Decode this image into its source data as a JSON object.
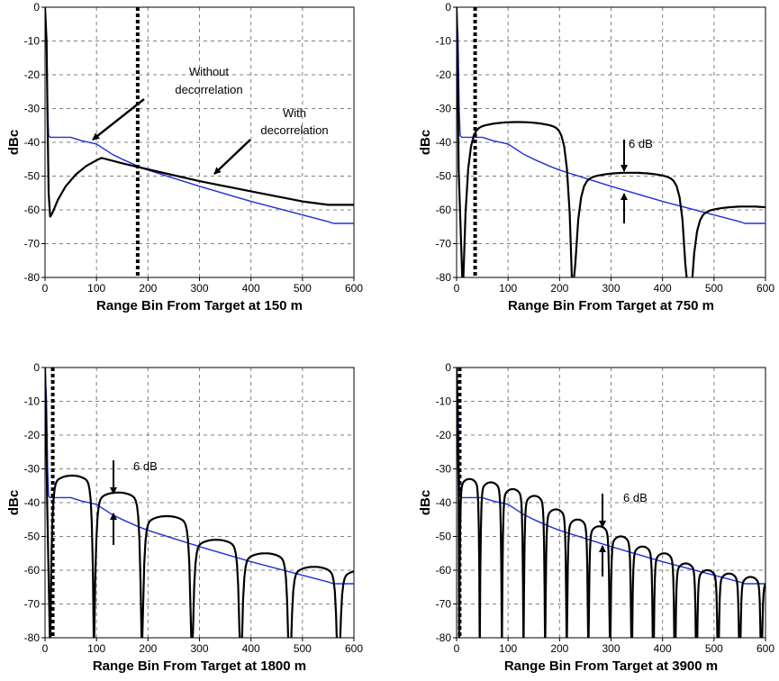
{
  "colors": {
    "with_decorrelation": "#000000",
    "without_decorrelation": "#1f2fd8",
    "grid": "#808080",
    "marker": "#000000"
  },
  "chart_data": [
    {
      "type": "line",
      "xlabel": "Range Bin From Target at 150 m",
      "ylabel": "dBc",
      "xlim": [
        0,
        600
      ],
      "ylim": [
        -80,
        0
      ],
      "xticks": [
        0,
        100,
        200,
        300,
        400,
        500,
        600
      ],
      "yticks": [
        0,
        -10,
        -20,
        -30,
        -40,
        -50,
        -60,
        -70,
        -80
      ],
      "grid": true,
      "marker_x": 180,
      "series": [
        {
          "name": "Without decorrelation",
          "color": "without_decorrelation",
          "kind": "polyline",
          "points": [
            [
              0,
              0
            ],
            [
              3,
              -10
            ],
            [
              5,
              -30
            ],
            [
              7,
              -38
            ],
            [
              10,
              -38.5
            ],
            [
              50,
              -38.5
            ],
            [
              70,
              -39.5
            ],
            [
              100,
              -40.5
            ],
            [
              130,
              -43.5
            ],
            [
              150,
              -45
            ],
            [
              180,
              -47
            ],
            [
              200,
              -48.2
            ],
            [
              300,
              -53
            ],
            [
              400,
              -57.5
            ],
            [
              500,
              -61.5
            ],
            [
              550,
              -63.5
            ],
            [
              560,
              -64
            ],
            [
              600,
              -64
            ]
          ]
        },
        {
          "name": "With decorrelation",
          "color": "with_decorrelation",
          "kind": "polyline",
          "points": [
            [
              0,
              0
            ],
            [
              3,
              -10
            ],
            [
              5,
              -35
            ],
            [
              7,
              -55
            ],
            [
              10,
              -62
            ],
            [
              14,
              -61
            ],
            [
              25,
              -57
            ],
            [
              40,
              -53
            ],
            [
              60,
              -49.5
            ],
            [
              80,
              -47
            ],
            [
              100,
              -45.3
            ],
            [
              110,
              -44.6
            ],
            [
              120,
              -45
            ],
            [
              150,
              -46.2
            ],
            [
              200,
              -48
            ],
            [
              300,
              -51.5
            ],
            [
              400,
              -54.5
            ],
            [
              500,
              -57.5
            ],
            [
              550,
              -58.5
            ],
            [
              600,
              -58.5
            ]
          ]
        }
      ],
      "annotations": [
        {
          "lines": [
            "Without",
            "decorrelation"
          ]
        },
        {
          "lines": [
            "With",
            "decorrelation"
          ]
        }
      ]
    },
    {
      "type": "line",
      "xlabel": "Range Bin From Target at 750 m",
      "ylabel": "dBc",
      "xlim": [
        0,
        600
      ],
      "ylim": [
        -80,
        0
      ],
      "xticks": [
        0,
        100,
        200,
        300,
        400,
        500,
        600
      ],
      "yticks": [
        0,
        -10,
        -20,
        -30,
        -40,
        -50,
        -60,
        -70,
        -80
      ],
      "grid": true,
      "marker_x": 36,
      "series": [
        {
          "name": "Without decorrelation",
          "color": "without_decorrelation",
          "kind": "polyline",
          "points": [
            [
              0,
              0
            ],
            [
              3,
              -10
            ],
            [
              5,
              -30
            ],
            [
              7,
              -38
            ],
            [
              10,
              -38.5
            ],
            [
              50,
              -38.5
            ],
            [
              70,
              -39.5
            ],
            [
              100,
              -40.5
            ],
            [
              130,
              -43.5
            ],
            [
              150,
              -45
            ],
            [
              180,
              -47
            ],
            [
              200,
              -48.2
            ],
            [
              300,
              -53
            ],
            [
              400,
              -57.5
            ],
            [
              500,
              -61.5
            ],
            [
              550,
              -63.5
            ],
            [
              560,
              -64
            ],
            [
              600,
              -64
            ]
          ]
        },
        {
          "name": "With decorrelation",
          "color": "with_decorrelation",
          "kind": "lobes",
          "lead_drop": -48,
          "lobes": [
            [
              12,
              225,
              -34
            ],
            [
              225,
              450,
              -49
            ],
            [
              450,
              680,
              -59
            ]
          ]
        }
      ],
      "annotations": [
        {
          "lines": [
            "6 dB"
          ]
        }
      ]
    },
    {
      "type": "line",
      "xlabel": "Range Bin From Target at 1800 m",
      "ylabel": "dBc",
      "xlim": [
        0,
        600
      ],
      "ylim": [
        -80,
        0
      ],
      "xticks": [
        0,
        100,
        200,
        300,
        400,
        500,
        600
      ],
      "yticks": [
        0,
        -10,
        -20,
        -30,
        -40,
        -50,
        -60,
        -70,
        -80
      ],
      "grid": true,
      "marker_x": 15,
      "series": [
        {
          "name": "Without decorrelation",
          "color": "without_decorrelation",
          "kind": "polyline",
          "points": [
            [
              0,
              0
            ],
            [
              3,
              -10
            ],
            [
              5,
              -30
            ],
            [
              7,
              -38
            ],
            [
              10,
              -38.5
            ],
            [
              50,
              -38.5
            ],
            [
              70,
              -39.5
            ],
            [
              100,
              -40.5
            ],
            [
              130,
              -43.5
            ],
            [
              150,
              -45
            ],
            [
              180,
              -47
            ],
            [
              200,
              -48.2
            ],
            [
              300,
              -53
            ],
            [
              400,
              -57.5
            ],
            [
              500,
              -61.5
            ],
            [
              550,
              -63.5
            ],
            [
              560,
              -64
            ],
            [
              600,
              -64
            ]
          ]
        },
        {
          "name": "With decorrelation",
          "color": "with_decorrelation",
          "kind": "lobes",
          "lead_drop": -39,
          "lobes": [
            [
              10,
              95,
              -32
            ],
            [
              95,
              188,
              -37
            ],
            [
              188,
              285,
              -44
            ],
            [
              285,
              380,
              -51
            ],
            [
              380,
              475,
              -55
            ],
            [
              475,
              570,
              -59
            ],
            [
              570,
              665,
              -60
            ]
          ]
        }
      ],
      "annotations": [
        {
          "lines": [
            "6 dB"
          ]
        }
      ]
    },
    {
      "type": "line",
      "xlabel": "Range Bin From Target at 3900 m",
      "ylabel": "dBc",
      "xlim": [
        0,
        600
      ],
      "ylim": [
        -80,
        0
      ],
      "xticks": [
        0,
        100,
        200,
        300,
        400,
        500,
        600
      ],
      "yticks": [
        0,
        -10,
        -20,
        -30,
        -40,
        -50,
        -60,
        -70,
        -80
      ],
      "grid": true,
      "marker_x": 6,
      "series": [
        {
          "name": "Without decorrelation",
          "color": "without_decorrelation",
          "kind": "polyline",
          "points": [
            [
              0,
              0
            ],
            [
              3,
              -10
            ],
            [
              5,
              -30
            ],
            [
              7,
              -38
            ],
            [
              10,
              -38.5
            ],
            [
              50,
              -38.5
            ],
            [
              70,
              -39.5
            ],
            [
              100,
              -40.5
            ],
            [
              130,
              -43.5
            ],
            [
              150,
              -45
            ],
            [
              180,
              -47
            ],
            [
              200,
              -48.2
            ],
            [
              300,
              -53
            ],
            [
              400,
              -57.5
            ],
            [
              500,
              -61.5
            ],
            [
              550,
              -63.5
            ],
            [
              560,
              -64
            ],
            [
              600,
              -64
            ]
          ]
        },
        {
          "name": "With decorrelation",
          "color": "with_decorrelation",
          "kind": "lobes",
          "lead_drop": -38,
          "lobes": [
            [
              5,
              45,
              -33
            ],
            [
              45,
              88,
              -34
            ],
            [
              88,
              130,
              -36
            ],
            [
              130,
              172,
              -38
            ],
            [
              172,
              214,
              -42
            ],
            [
              214,
              256,
              -45
            ],
            [
              256,
              298,
              -47
            ],
            [
              298,
              340,
              -50
            ],
            [
              340,
              382,
              -53
            ],
            [
              382,
              424,
              -55
            ],
            [
              424,
              466,
              -58
            ],
            [
              466,
              508,
              -60
            ],
            [
              508,
              550,
              -61
            ],
            [
              550,
              592,
              -62
            ],
            [
              592,
              634,
              -63
            ]
          ]
        }
      ],
      "annotations": [
        {
          "lines": [
            "6 dB"
          ]
        }
      ]
    }
  ]
}
